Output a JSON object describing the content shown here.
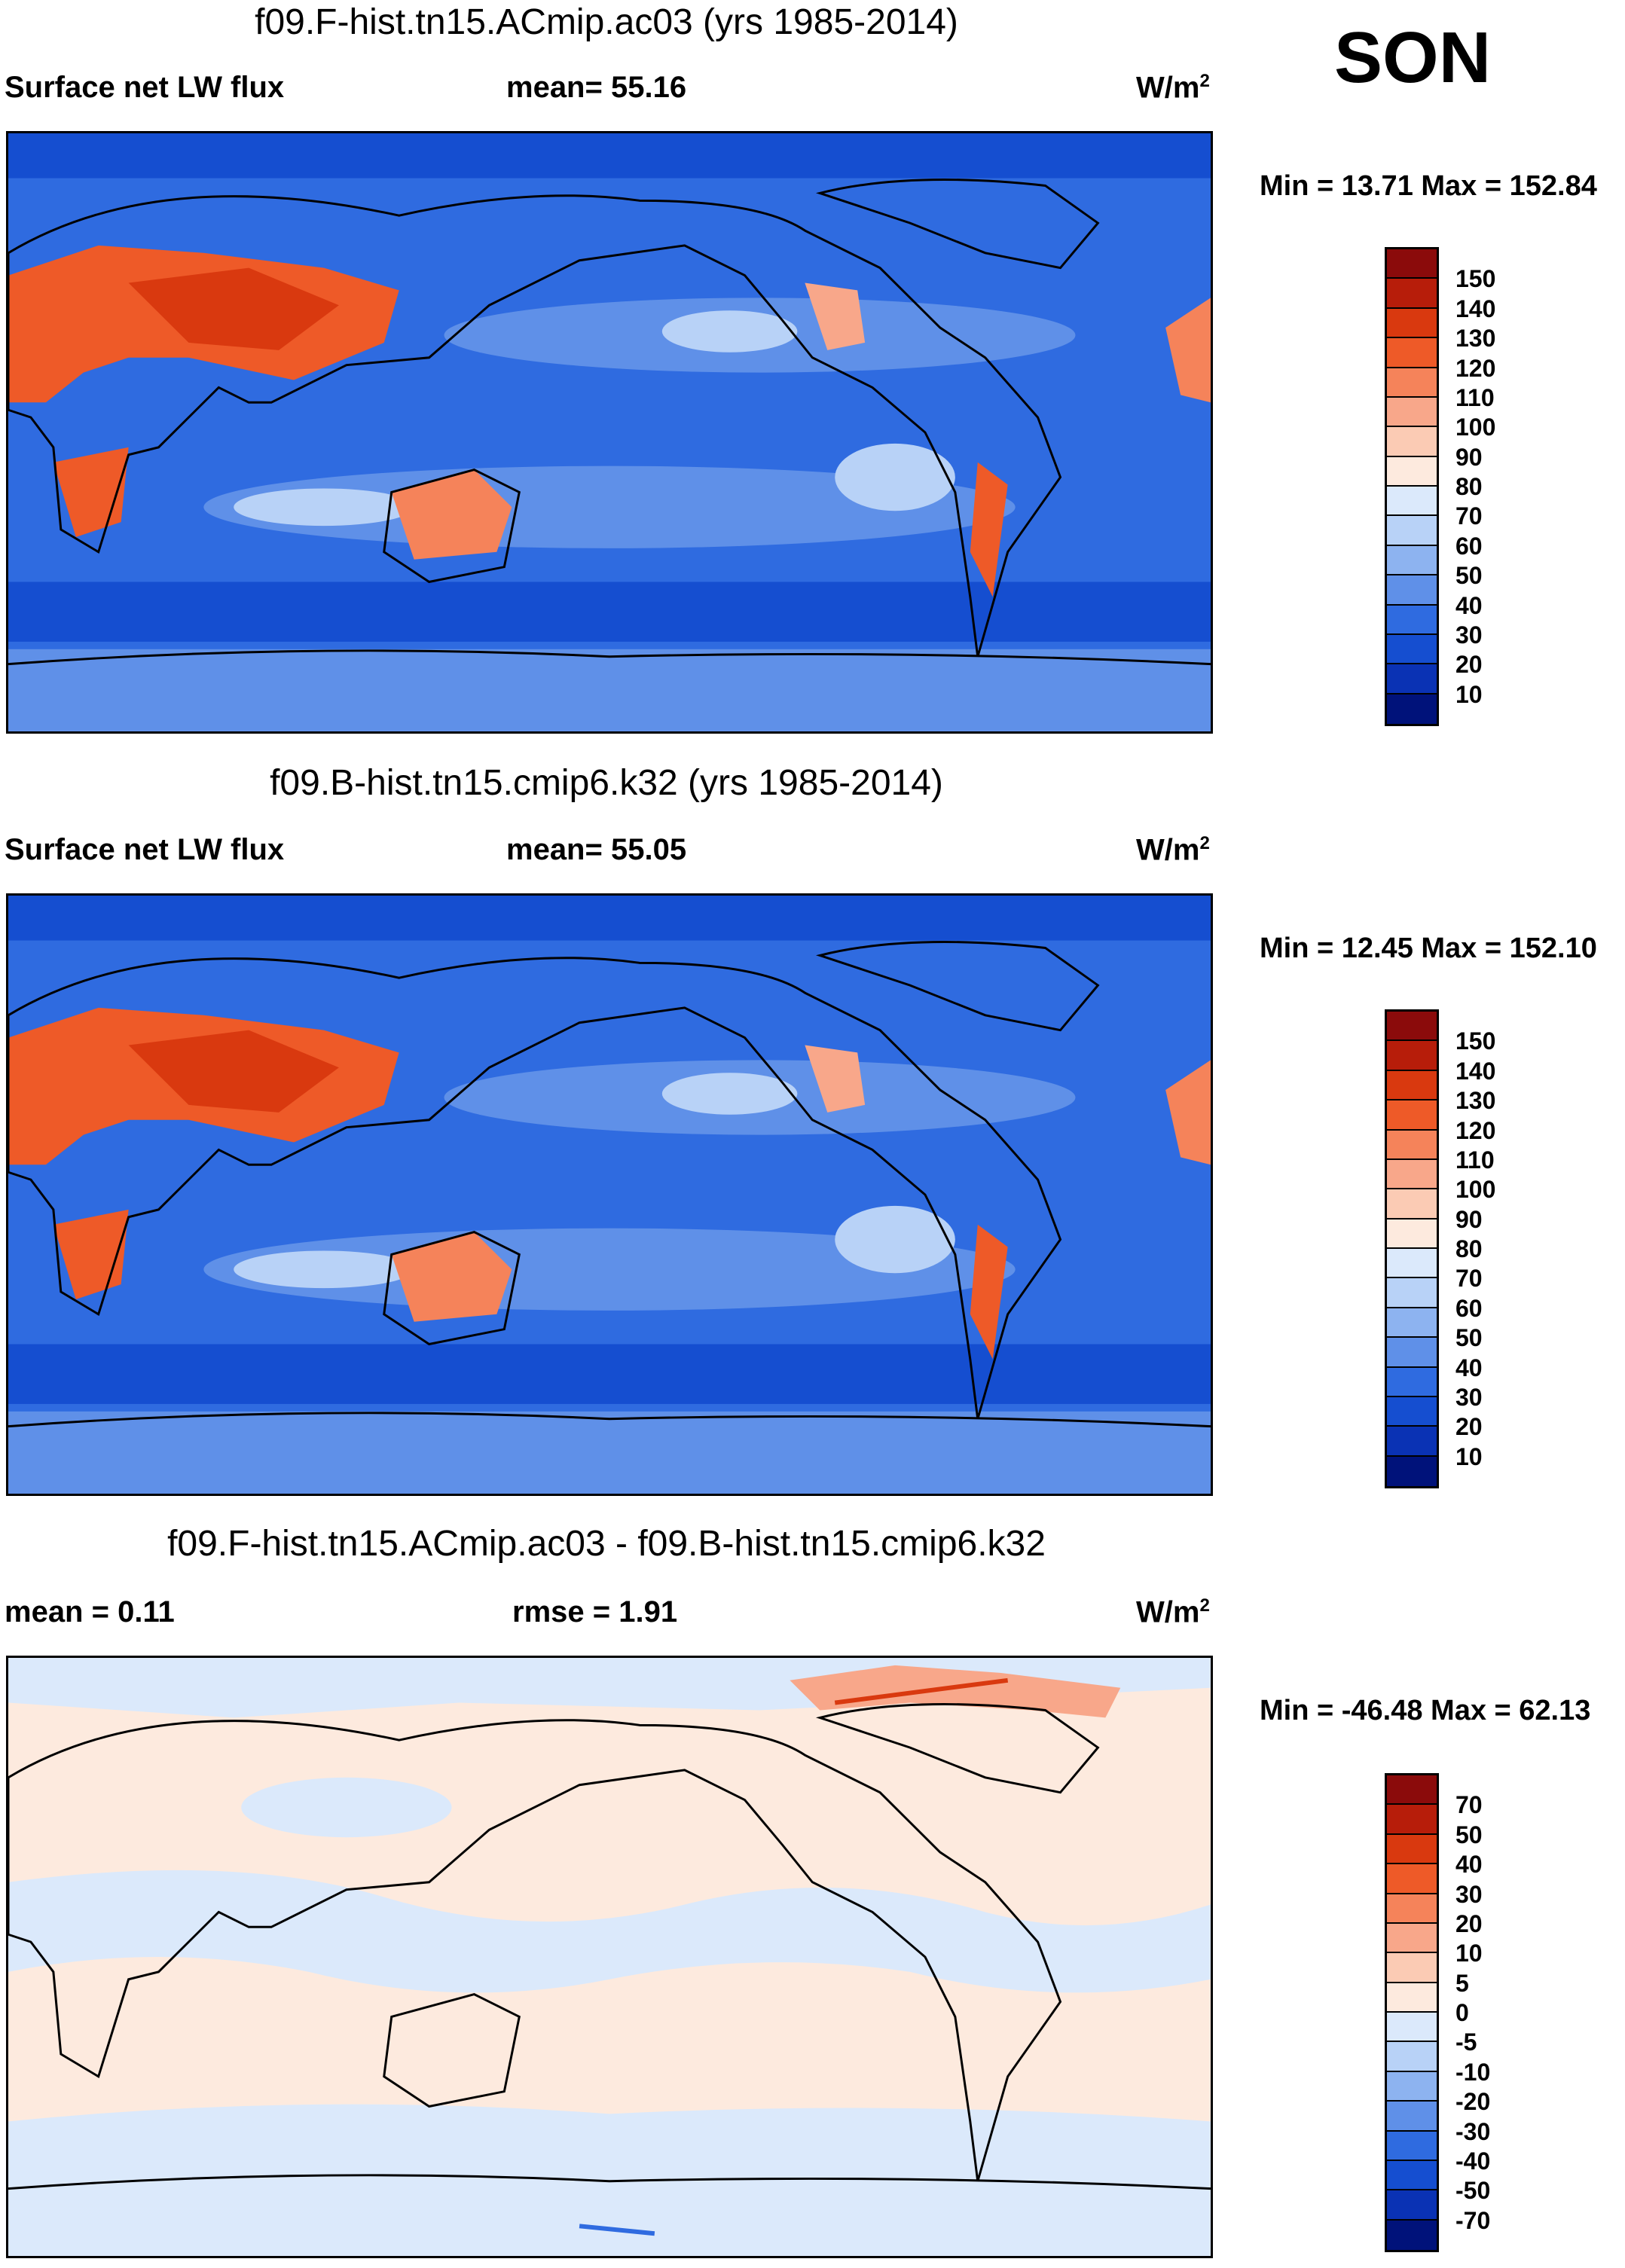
{
  "season": "SON",
  "panels": [
    {
      "title": "f09.F-hist.tn15.ACmip.ac03 (yrs 1985-2014)",
      "left_label": "Surface net LW flux",
      "mid_label": "mean=  55.16",
      "units_label": "W/m",
      "units_sup": "2",
      "minmax": "Min =  13.71 Max = 152.84",
      "colorbar": {
        "levels": [
          "150",
          "140",
          "130",
          "120",
          "110",
          "100",
          "90",
          "80",
          "70",
          "60",
          "50",
          "40",
          "30",
          "20",
          "10"
        ],
        "colors": [
          "#8b0b0b",
          "#b71d0a",
          "#d9390f",
          "#ee5a28",
          "#f5835a",
          "#f8a78a",
          "#fbcbb4",
          "#fdeade",
          "#dbe9fb",
          "#b8d2f7",
          "#8db3f0",
          "#5f90e8",
          "#2f6be0",
          "#154ed0",
          "#0a32b4",
          "#00127a"
        ]
      }
    },
    {
      "title": "f09.B-hist.tn15.cmip6.k32 (yrs 1985-2014)",
      "left_label": "Surface net LW flux",
      "mid_label": "mean=  55.05",
      "units_label": "W/m",
      "units_sup": "2",
      "minmax": "Min =  12.45 Max = 152.10",
      "colorbar": {
        "levels": [
          "150",
          "140",
          "130",
          "120",
          "110",
          "100",
          "90",
          "80",
          "70",
          "60",
          "50",
          "40",
          "30",
          "20",
          "10"
        ],
        "colors": [
          "#8b0b0b",
          "#b71d0a",
          "#d9390f",
          "#ee5a28",
          "#f5835a",
          "#f8a78a",
          "#fbcbb4",
          "#fdeade",
          "#dbe9fb",
          "#b8d2f7",
          "#8db3f0",
          "#5f90e8",
          "#2f6be0",
          "#154ed0",
          "#0a32b4",
          "#00127a"
        ]
      }
    },
    {
      "title": "f09.F-hist.tn15.ACmip.ac03 - f09.B-hist.tn15.cmip6.k32",
      "left_label": "mean =   0.11",
      "mid_label": "rmse =   1.91",
      "units_label": "W/m",
      "units_sup": "2",
      "minmax": "Min = -46.48 Max =  62.13",
      "colorbar": {
        "levels": [
          "70",
          "50",
          "40",
          "30",
          "20",
          "10",
          "5",
          "0",
          "-5",
          "-10",
          "-20",
          "-30",
          "-40",
          "-50",
          "-70"
        ],
        "colors": [
          "#8b0b0b",
          "#b71d0a",
          "#d9390f",
          "#ee5a28",
          "#f5835a",
          "#f8a78a",
          "#fbcbb4",
          "#fdeade",
          "#dbe9fb",
          "#b8d2f7",
          "#8db3f0",
          "#5f90e8",
          "#2f6be0",
          "#154ed0",
          "#0a32b4",
          "#00127a"
        ]
      }
    }
  ]
}
